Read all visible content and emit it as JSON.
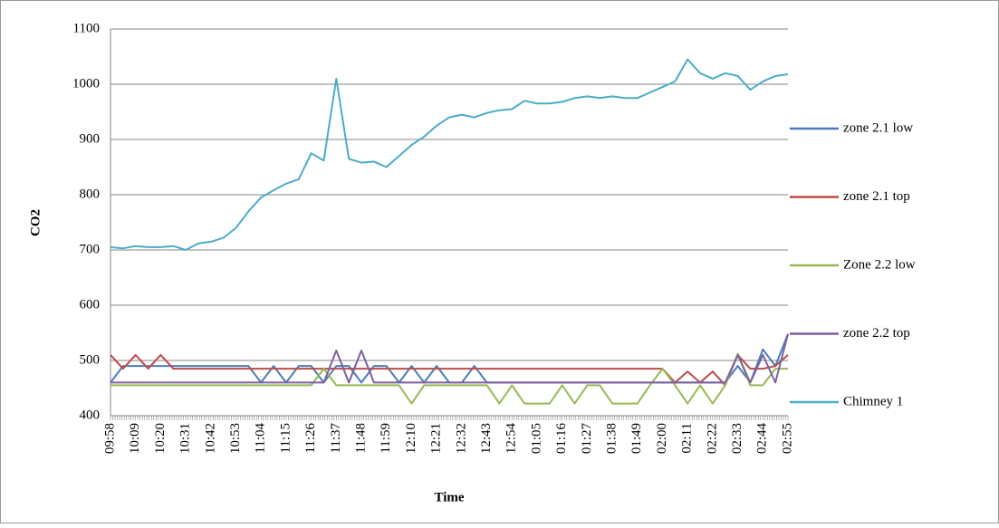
{
  "chart_data": {
    "type": "line",
    "x_label": "Time",
    "y_label": "CO2",
    "categories": [
      "09:58",
      null,
      "10:09",
      null,
      "10:20",
      null,
      "10:31",
      null,
      "10:42",
      null,
      "10:53",
      null,
      "11:04",
      null,
      "11:15",
      null,
      "11:26",
      null,
      "11:37",
      null,
      "11:48",
      null,
      "11:59",
      null,
      "12:10",
      null,
      "12:21",
      null,
      "12:32",
      null,
      "12:43",
      null,
      "12:54",
      null,
      "01:05",
      null,
      "01:16",
      null,
      "01:27",
      null,
      "01:38",
      null,
      "01:49",
      null,
      "02:00",
      null,
      "02:11",
      null,
      "02:22",
      null,
      "02:33",
      null,
      "02:44",
      null,
      "02:55"
    ],
    "series": [
      {
        "name": "zone 2.1 low",
        "color": "#4a7ebb",
        "values": [
          460,
          490,
          490,
          490,
          490,
          490,
          490,
          490,
          490,
          490,
          490,
          490,
          460,
          490,
          460,
          490,
          490,
          460,
          490,
          490,
          460,
          490,
          490,
          460,
          490,
          460,
          490,
          460,
          460,
          490,
          460,
          460,
          460,
          460,
          460,
          460,
          460,
          460,
          460,
          460,
          460,
          460,
          460,
          460,
          460,
          460,
          460,
          460,
          460,
          460,
          490,
          460,
          520,
          490,
          548
        ]
      },
      {
        "name": "zone 2.1 top",
        "color": "#be4b48",
        "values": [
          510,
          485,
          510,
          485,
          510,
          485,
          485,
          485,
          485,
          485,
          485,
          485,
          485,
          485,
          485,
          485,
          485,
          485,
          485,
          485,
          485,
          485,
          485,
          485,
          485,
          485,
          485,
          485,
          485,
          485,
          485,
          485,
          485,
          485,
          485,
          485,
          485,
          485,
          485,
          485,
          485,
          485,
          485,
          485,
          485,
          460,
          480,
          460,
          480,
          455,
          510,
          485,
          485,
          490,
          510
        ]
      },
      {
        "name": "Zone 2.2 low",
        "color": "#98b954",
        "values": [
          455,
          455,
          455,
          455,
          455,
          455,
          455,
          455,
          455,
          455,
          455,
          455,
          455,
          455,
          455,
          455,
          455,
          485,
          455,
          455,
          455,
          455,
          455,
          455,
          422,
          455,
          455,
          455,
          455,
          455,
          455,
          422,
          455,
          422,
          422,
          422,
          455,
          422,
          455,
          455,
          422,
          422,
          422,
          455,
          485,
          455,
          422,
          455,
          422,
          455,
          512,
          455,
          455,
          485,
          485
        ]
      },
      {
        "name": "zone 2.2 top",
        "color": "#7d60a0",
        "values": [
          460,
          460,
          460,
          460,
          460,
          460,
          460,
          460,
          460,
          460,
          460,
          460,
          460,
          460,
          460,
          460,
          460,
          460,
          518,
          460,
          518,
          460,
          460,
          460,
          460,
          460,
          460,
          460,
          460,
          460,
          460,
          460,
          460,
          460,
          460,
          460,
          460,
          460,
          460,
          460,
          460,
          460,
          460,
          460,
          460,
          460,
          460,
          460,
          460,
          460,
          510,
          460,
          510,
          460,
          548
        ]
      },
      {
        "name": "Chimney 1",
        "color": "#4bacc6",
        "values": [
          705,
          703,
          707,
          705,
          705,
          707,
          700,
          712,
          715,
          722,
          740,
          770,
          795,
          808,
          820,
          828,
          875,
          862,
          1010,
          865,
          858,
          860,
          850,
          870,
          890,
          905,
          925,
          940,
          945,
          940,
          948,
          953,
          955,
          970,
          965,
          965,
          968,
          975,
          978,
          975,
          978,
          975,
          975,
          985,
          995,
          1005,
          1045,
          1020,
          1010,
          1020,
          1015,
          990,
          1005,
          1015,
          1018
        ]
      }
    ],
    "ylim": [
      400,
      1100
    ],
    "yticks": [
      400,
      500,
      600,
      700,
      800,
      900,
      1000,
      1100
    ],
    "grid": true,
    "legend": "right"
  }
}
